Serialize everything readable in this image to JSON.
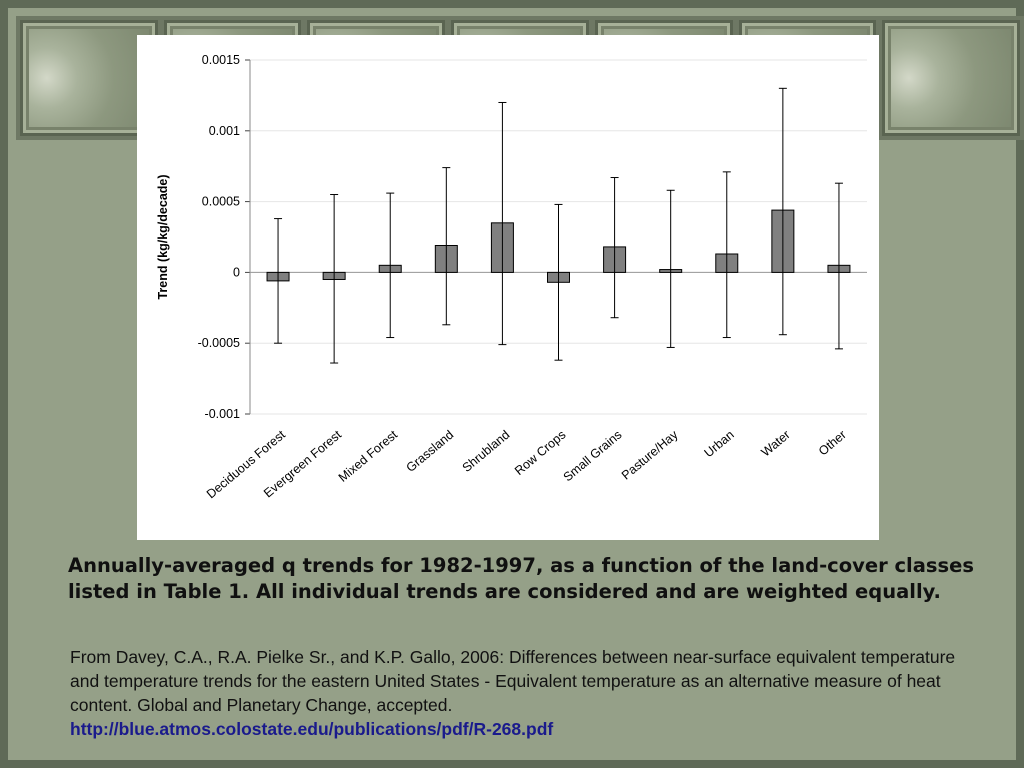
{
  "caption": "Annually-averaged q trends for 1982-1997, as a function of the land-cover classes listed in Table 1. All individual trends are considered and are weighted equally.",
  "source": {
    "text": "From Davey, C.A., R.A. Pielke Sr., and K.P. Gallo, 2006: Differences between near-surface equivalent temperature and temperature trends for the eastern United States - Equivalent temperature as an alternative measure of heat content. Global and Planetary Change, accepted.",
    "link": "http://blue.atmos.colostate.edu/publications/pdf/R-268.pdf"
  },
  "chart_data": {
    "type": "bar",
    "title": "",
    "xlabel": "",
    "ylabel": "Trend (kg/kg/decade)",
    "ylim": [
      -0.001,
      0.0015
    ],
    "yticks": [
      0.0015,
      0.001,
      0.0005,
      0,
      -0.0005,
      -0.001
    ],
    "ytick_labels": [
      "0.0015",
      "0.001",
      "0.0005",
      "0",
      "-0.0005",
      "-0.001"
    ],
    "grid": true,
    "bar_color": "#808080",
    "categories": [
      "Deciduous Forest",
      "Evergreen Forest",
      "Mixed Forest",
      "Grassland",
      "Shrubland",
      "Row Crops",
      "Small Grains",
      "Pasture/Hay",
      "Urban",
      "Water",
      "Other"
    ],
    "values": [
      -6e-05,
      -5e-05,
      5e-05,
      0.00019,
      0.00035,
      -7e-05,
      0.00018,
      2e-05,
      0.00013,
      0.00044,
      5e-05
    ],
    "error_low": [
      -0.0005,
      -0.00064,
      -0.00046,
      -0.00037,
      -0.00051,
      -0.00062,
      -0.00032,
      -0.00053,
      -0.00046,
      -0.00044,
      -0.00054
    ],
    "error_high": [
      0.00038,
      0.00055,
      0.00056,
      0.00074,
      0.0012,
      0.00048,
      0.00067,
      0.00058,
      0.00071,
      0.0013,
      0.00063
    ]
  }
}
